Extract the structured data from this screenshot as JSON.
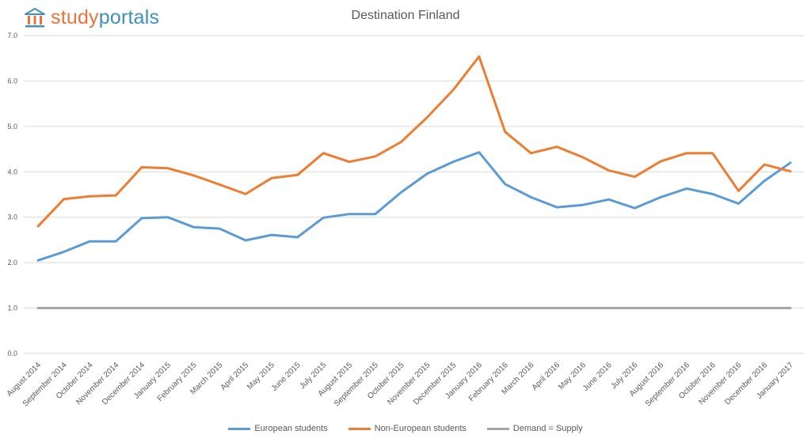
{
  "brand": {
    "logo_part1": "study",
    "logo_part2": "portals",
    "icon": "building-icon"
  },
  "chart_data": {
    "type": "line",
    "title": "Destination Finland",
    "xlabel": "",
    "ylabel": "",
    "ylim": [
      0,
      7
    ],
    "yticks": [
      "0.0",
      "1.0",
      "2.0",
      "3.0",
      "4.0",
      "5.0",
      "6.0",
      "7.0"
    ],
    "grid": true,
    "legend_position": "bottom",
    "categories": [
      "August 2014",
      "September 2014",
      "October 2014",
      "November 2014",
      "December 2014",
      "January 2015",
      "February 2015",
      "March 2015",
      "April 2015",
      "May 2015",
      "June 2015",
      "July 2015",
      "August 2015",
      "September 2015",
      "October 2015",
      "November 2015",
      "December 2015",
      "January 2016",
      "February 2016",
      "March 2016",
      "April 2016",
      "May 2016",
      "June 2016",
      "July 2016",
      "August 2016",
      "September 2016",
      "October 2016",
      "November 2016",
      "December 2016",
      "January 2017"
    ],
    "series": [
      {
        "name": "European students",
        "color": "#5b9bd5",
        "values": [
          2.05,
          2.24,
          2.47,
          2.47,
          2.98,
          3.0,
          2.78,
          2.75,
          2.49,
          2.61,
          2.56,
          2.99,
          3.07,
          3.07,
          3.55,
          3.96,
          4.22,
          4.43,
          3.73,
          3.44,
          3.22,
          3.27,
          3.39,
          3.2,
          3.44,
          3.63,
          3.51,
          3.3,
          3.8,
          4.2
        ]
      },
      {
        "name": "Non-European students",
        "color": "#ed7d31",
        "values": [
          2.8,
          3.4,
          3.46,
          3.48,
          4.1,
          4.08,
          3.92,
          3.72,
          3.51,
          3.86,
          3.93,
          4.41,
          4.22,
          4.34,
          4.66,
          5.2,
          5.8,
          6.54,
          4.88,
          4.41,
          4.55,
          4.32,
          4.03,
          3.89,
          4.23,
          4.41,
          4.41,
          3.58,
          4.16,
          4.01
        ]
      },
      {
        "name": "Demand = Supply",
        "color": "#a5a5a5",
        "values": [
          1.0,
          1.0,
          1.0,
          1.0,
          1.0,
          1.0,
          1.0,
          1.0,
          1.0,
          1.0,
          1.0,
          1.0,
          1.0,
          1.0,
          1.0,
          1.0,
          1.0,
          1.0,
          1.0,
          1.0,
          1.0,
          1.0,
          1.0,
          1.0,
          1.0,
          1.0,
          1.0,
          1.0,
          1.0,
          1.0
        ]
      }
    ]
  }
}
